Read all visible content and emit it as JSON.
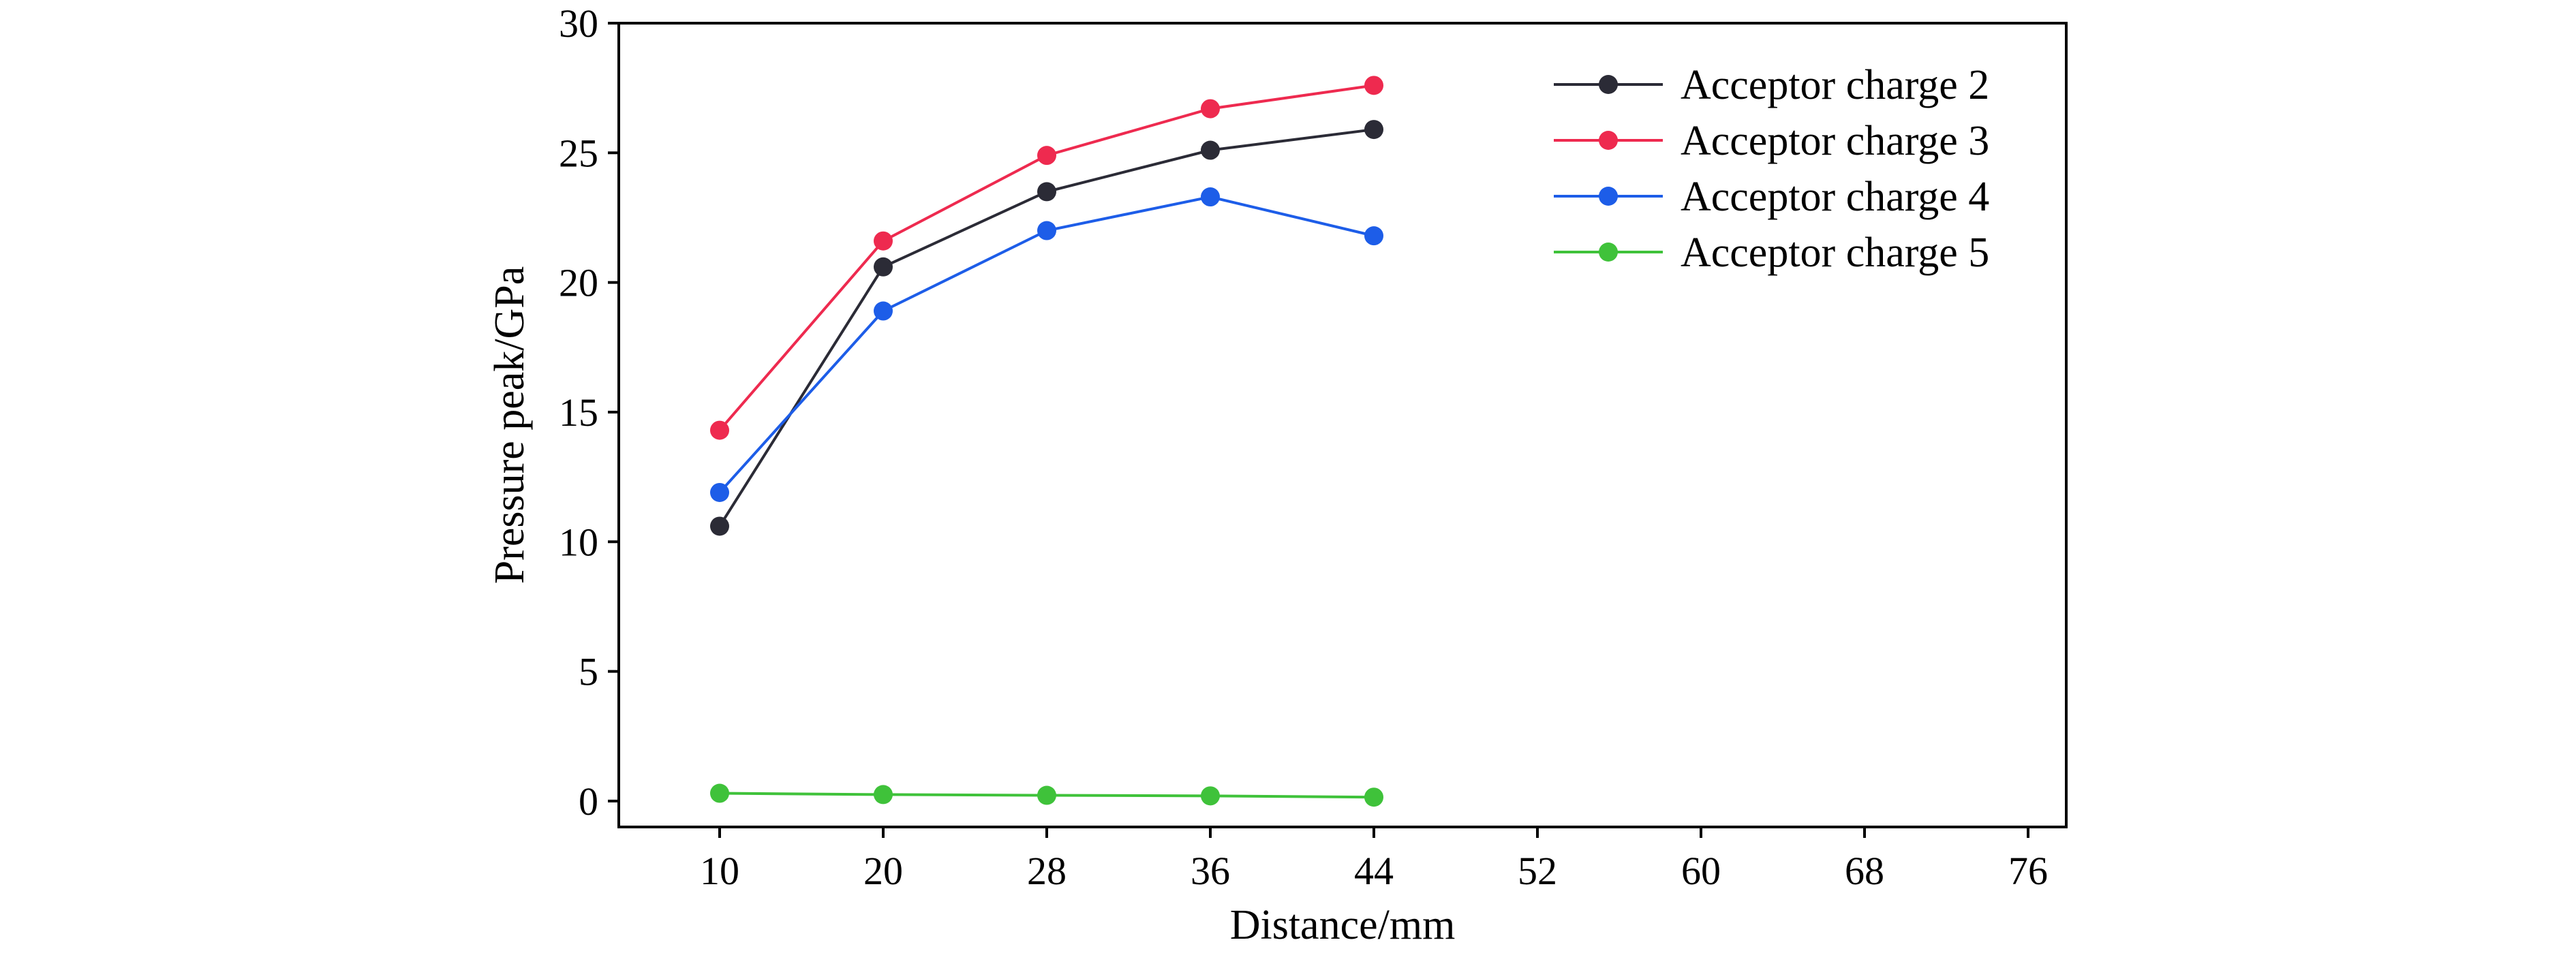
{
  "chart_data": {
    "type": "line",
    "title": "",
    "xlabel": "Distance/mm",
    "ylabel": "Pressure peak/GPa",
    "x_ticks": [
      "10",
      "20",
      "28",
      "36",
      "44",
      "52",
      "60",
      "68",
      "76"
    ],
    "y_ticks": [
      "0",
      "5",
      "10",
      "15",
      "20",
      "25",
      "30"
    ],
    "ylim": [
      -1,
      30
    ],
    "grid": false,
    "legend_position": "top-right",
    "categories": [
      "10",
      "20",
      "28",
      "36",
      "44"
    ],
    "series": [
      {
        "name": "Acceptor charge 2",
        "color": "#2b2b36",
        "values": [
          10.6,
          20.6,
          23.5,
          25.1,
          25.9
        ]
      },
      {
        "name": "Acceptor charge 3",
        "color": "#ee2a4f",
        "values": [
          14.3,
          21.6,
          24.9,
          26.7,
          27.6
        ]
      },
      {
        "name": "Acceptor charge 4",
        "color": "#1d5de8",
        "values": [
          11.9,
          18.9,
          22.0,
          23.3,
          21.8
        ]
      },
      {
        "name": "Acceptor charge 5",
        "color": "#3fc23a",
        "values": [
          0.3,
          0.25,
          0.22,
          0.2,
          0.15
        ]
      }
    ]
  }
}
